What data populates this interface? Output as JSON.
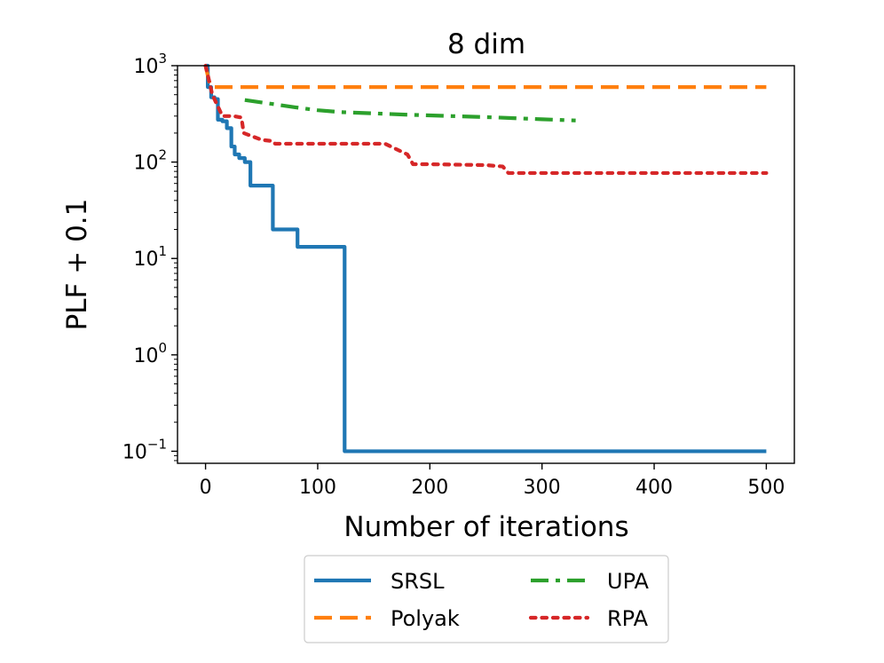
{
  "chart_data": {
    "type": "line",
    "title": "8 dim",
    "xlabel": "Number of iterations",
    "ylabel": "PLF + 0.1",
    "yscale": "log",
    "xlim": [
      -25,
      525
    ],
    "ylim": [
      0.075,
      1000
    ],
    "xticks": [
      0,
      100,
      200,
      300,
      400,
      500
    ],
    "xtick_labels": [
      "0",
      "100",
      "200",
      "300",
      "400",
      "500"
    ],
    "yticks": [
      1000,
      100,
      10,
      1,
      0.1
    ],
    "ytick_labels": [
      {
        "base": "10",
        "exp": "3"
      },
      {
        "base": "10",
        "exp": "2"
      },
      {
        "base": "10",
        "exp": "1"
      },
      {
        "base": "10",
        "exp": "0"
      },
      {
        "base": "10",
        "exp": "−1"
      }
    ],
    "legend_position": "below",
    "series": [
      {
        "name": "SRSL",
        "color": "#1f77b4",
        "dash": "solid",
        "x": [
          0,
          2,
          2,
          5,
          5,
          8,
          8,
          11,
          11,
          15,
          15,
          19,
          19,
          23,
          23,
          26,
          26,
          30,
          30,
          35,
          35,
          40,
          40,
          60,
          60,
          82,
          82,
          124,
          124,
          500
        ],
        "y": [
          1000,
          1000,
          600,
          600,
          470,
          470,
          450,
          450,
          275,
          275,
          265,
          265,
          225,
          225,
          145,
          145,
          120,
          120,
          110,
          110,
          100,
          100,
          57,
          57,
          20,
          20,
          13.2,
          13.2,
          0.1,
          0.1
        ]
      },
      {
        "name": "Polyak",
        "color": "#ff7f0e",
        "dash": "dashed",
        "x": [
          0,
          3,
          5,
          500
        ],
        "y": [
          1000,
          700,
          600,
          600
        ]
      },
      {
        "name": "UPA",
        "color": "#2ca02c",
        "dash": "dashdot",
        "x": [
          35,
          60,
          80,
          100,
          120,
          150,
          180,
          220,
          260,
          300,
          330
        ],
        "y": [
          440,
          400,
          370,
          345,
          330,
          320,
          310,
          300,
          290,
          278,
          270
        ]
      },
      {
        "name": "RPA",
        "color": "#d62728",
        "dash": "dotted",
        "x": [
          0,
          2,
          6,
          10,
          15,
          25,
          32,
          34,
          50,
          60,
          62,
          80,
          100,
          160,
          180,
          185,
          200,
          250,
          265,
          270,
          500
        ],
        "y": [
          1000,
          800,
          500,
          400,
          300,
          300,
          290,
          200,
          170,
          165,
          155,
          155,
          155,
          155,
          120,
          95,
          95,
          93,
          90,
          77,
          77
        ]
      }
    ]
  }
}
